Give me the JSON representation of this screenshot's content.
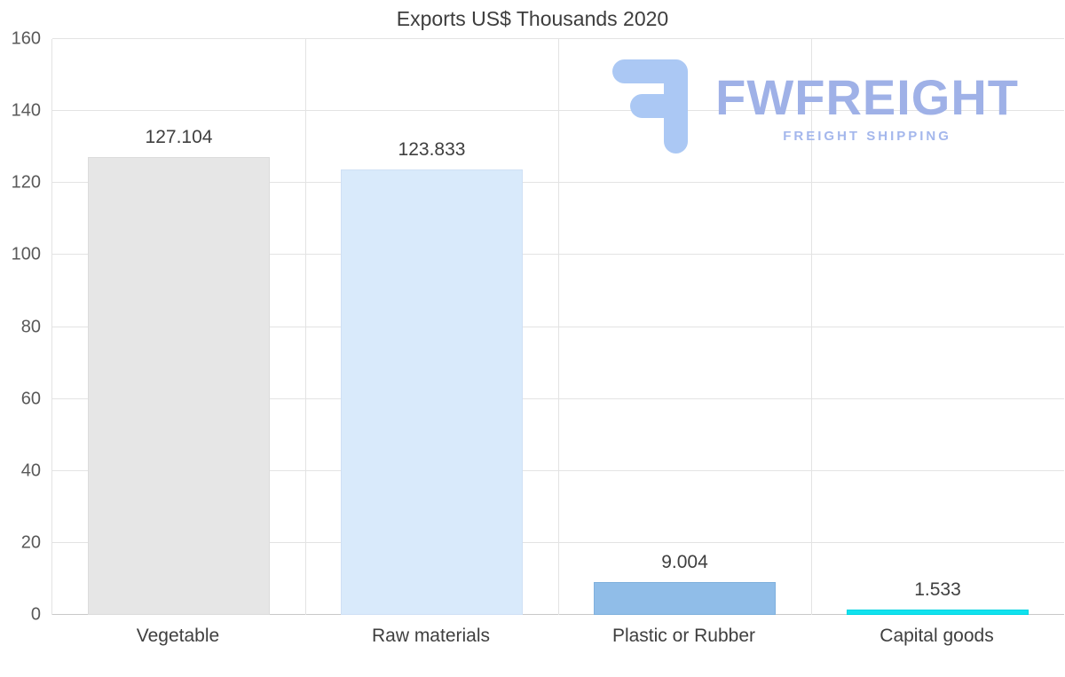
{
  "chart_data": {
    "type": "bar",
    "title": "Exports US$ Thousands 2020",
    "categories": [
      "Vegetable",
      "Raw materials",
      "Plastic or Rubber",
      "Capital goods"
    ],
    "values": [
      127.104,
      123.833,
      9.004,
      1.533
    ],
    "value_labels": [
      "127.104",
      "123.833",
      "9.004",
      "1.533"
    ],
    "bar_colors": [
      "#e6e6e6",
      "#d9eafb",
      "#90bde8",
      "#10e2ee"
    ],
    "bar_border_colors": [
      "#dcdcdc",
      "#cfe0f5",
      "#7fb0dd",
      "#00d5e2"
    ],
    "ylim": [
      0,
      160
    ],
    "yticks": [
      0,
      20,
      40,
      60,
      80,
      100,
      120,
      140,
      160
    ],
    "xlabel": "",
    "ylabel": "",
    "grid": "horizontal-and-vertical",
    "legend": "none"
  },
  "logo": {
    "text": "FWFREIGHT",
    "subtext": "FREIGHT SHIPPING",
    "icon": "fwfreight-f-mark-icon",
    "icon_color": "#abc8f4"
  },
  "colors": {
    "background": "#ffffff",
    "gridline": "#e3e3e3",
    "axis_line": "#c9c9c9",
    "tick_text": "#595959",
    "label_text": "#3f3f3f",
    "title_text": "#3d3d3d"
  }
}
